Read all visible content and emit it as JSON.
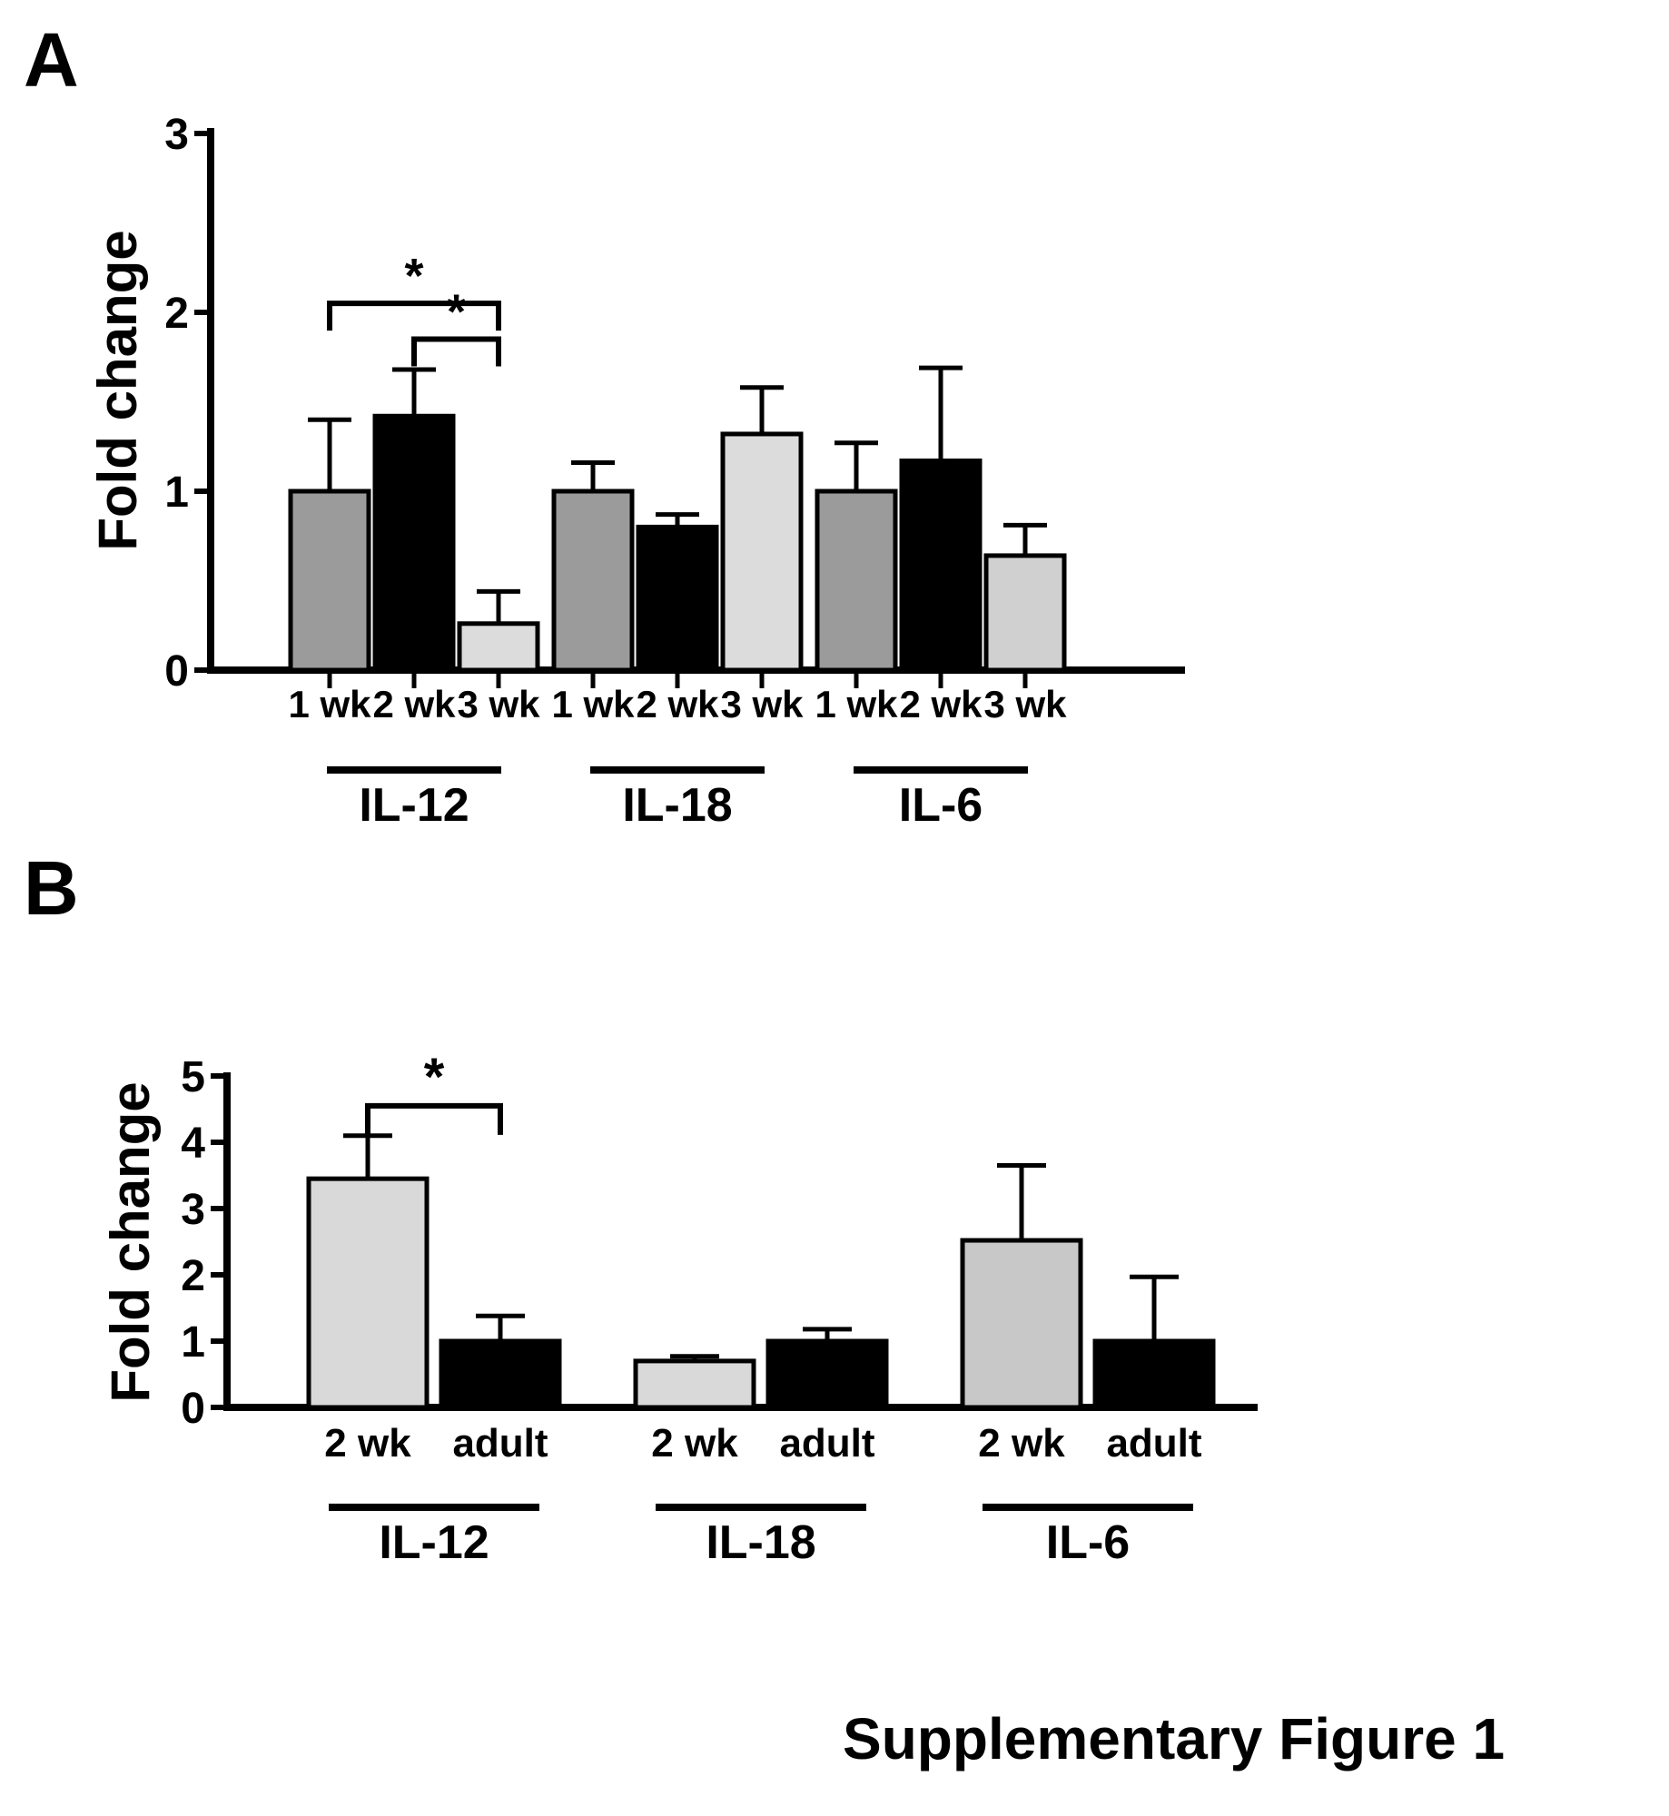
{
  "panel_labels": [
    "A",
    "B"
  ],
  "figure_title": "Supplementary Figure 1",
  "colors": {
    "bar_1wk_gray": "#9b9b9b",
    "bar_black": "#000000",
    "bar_light_gray": "#dcdcdc",
    "bar_light_gray_dark": "#c8c8c8",
    "axis": "#000000"
  },
  "chart_data": [
    {
      "type": "bar",
      "panel": "A",
      "ylabel": "Fold change",
      "ylim": [
        0,
        3
      ],
      "yticks": [
        0,
        1,
        2,
        3
      ],
      "grid": false,
      "legend": "none",
      "groups": [
        {
          "name": "IL-12",
          "bars": [
            {
              "label": "1 wk",
              "value": 1.0,
              "error": 0.4,
              "color": "#9b9b9b"
            },
            {
              "label": "2 wk",
              "value": 1.42,
              "error": 0.26,
              "color": "#000000"
            },
            {
              "label": "3 wk",
              "value": 0.26,
              "error": 0.18,
              "color": "#dcdcdc"
            }
          ]
        },
        {
          "name": "IL-18",
          "bars": [
            {
              "label": "1 wk",
              "value": 1.0,
              "error": 0.16,
              "color": "#9b9b9b"
            },
            {
              "label": "2 wk",
              "value": 0.8,
              "error": 0.07,
              "color": "#000000"
            },
            {
              "label": "3 wk",
              "value": 1.32,
              "error": 0.26,
              "color": "#dcdcdc"
            }
          ]
        },
        {
          "name": "IL-6",
          "bars": [
            {
              "label": "1 wk",
              "value": 1.0,
              "error": 0.27,
              "color": "#9b9b9b"
            },
            {
              "label": "2 wk",
              "value": 1.17,
              "error": 0.52,
              "color": "#000000"
            },
            {
              "label": "3 wk",
              "value": 0.64,
              "error": 0.17,
              "color": "#d0d0d0"
            }
          ]
        }
      ],
      "significance": [
        {
          "group": 0,
          "from": 0,
          "to": 2,
          "y": 2.05,
          "label": "*"
        },
        {
          "group": 0,
          "from": 1,
          "to": 2,
          "y": 1.85,
          "label": "*"
        }
      ]
    },
    {
      "type": "bar",
      "panel": "B",
      "ylabel": "Fold change",
      "ylim": [
        0,
        5
      ],
      "yticks": [
        0,
        1,
        2,
        3,
        4,
        5
      ],
      "grid": false,
      "legend": "none",
      "groups": [
        {
          "name": "IL-12",
          "bars": [
            {
              "label": "2 wk",
              "value": 3.45,
              "error": 0.65,
              "color": "#d9d9d9"
            },
            {
              "label": "adult",
              "value": 1.0,
              "error": 0.38,
              "color": "#000000"
            }
          ]
        },
        {
          "name": "IL-18",
          "bars": [
            {
              "label": "2 wk",
              "value": 0.7,
              "error": 0.07,
              "color": "#d9d9d9"
            },
            {
              "label": "adult",
              "value": 1.0,
              "error": 0.18,
              "color": "#000000"
            }
          ]
        },
        {
          "name": "IL-6",
          "bars": [
            {
              "label": "2 wk",
              "value": 2.52,
              "error": 1.13,
              "color": "#c8c8c8"
            },
            {
              "label": "adult",
              "value": 1.0,
              "error": 0.97,
              "color": "#000000"
            }
          ]
        }
      ],
      "significance": [
        {
          "group": 0,
          "from": 0,
          "to": 1,
          "y": 4.55,
          "label": "*"
        }
      ]
    }
  ]
}
